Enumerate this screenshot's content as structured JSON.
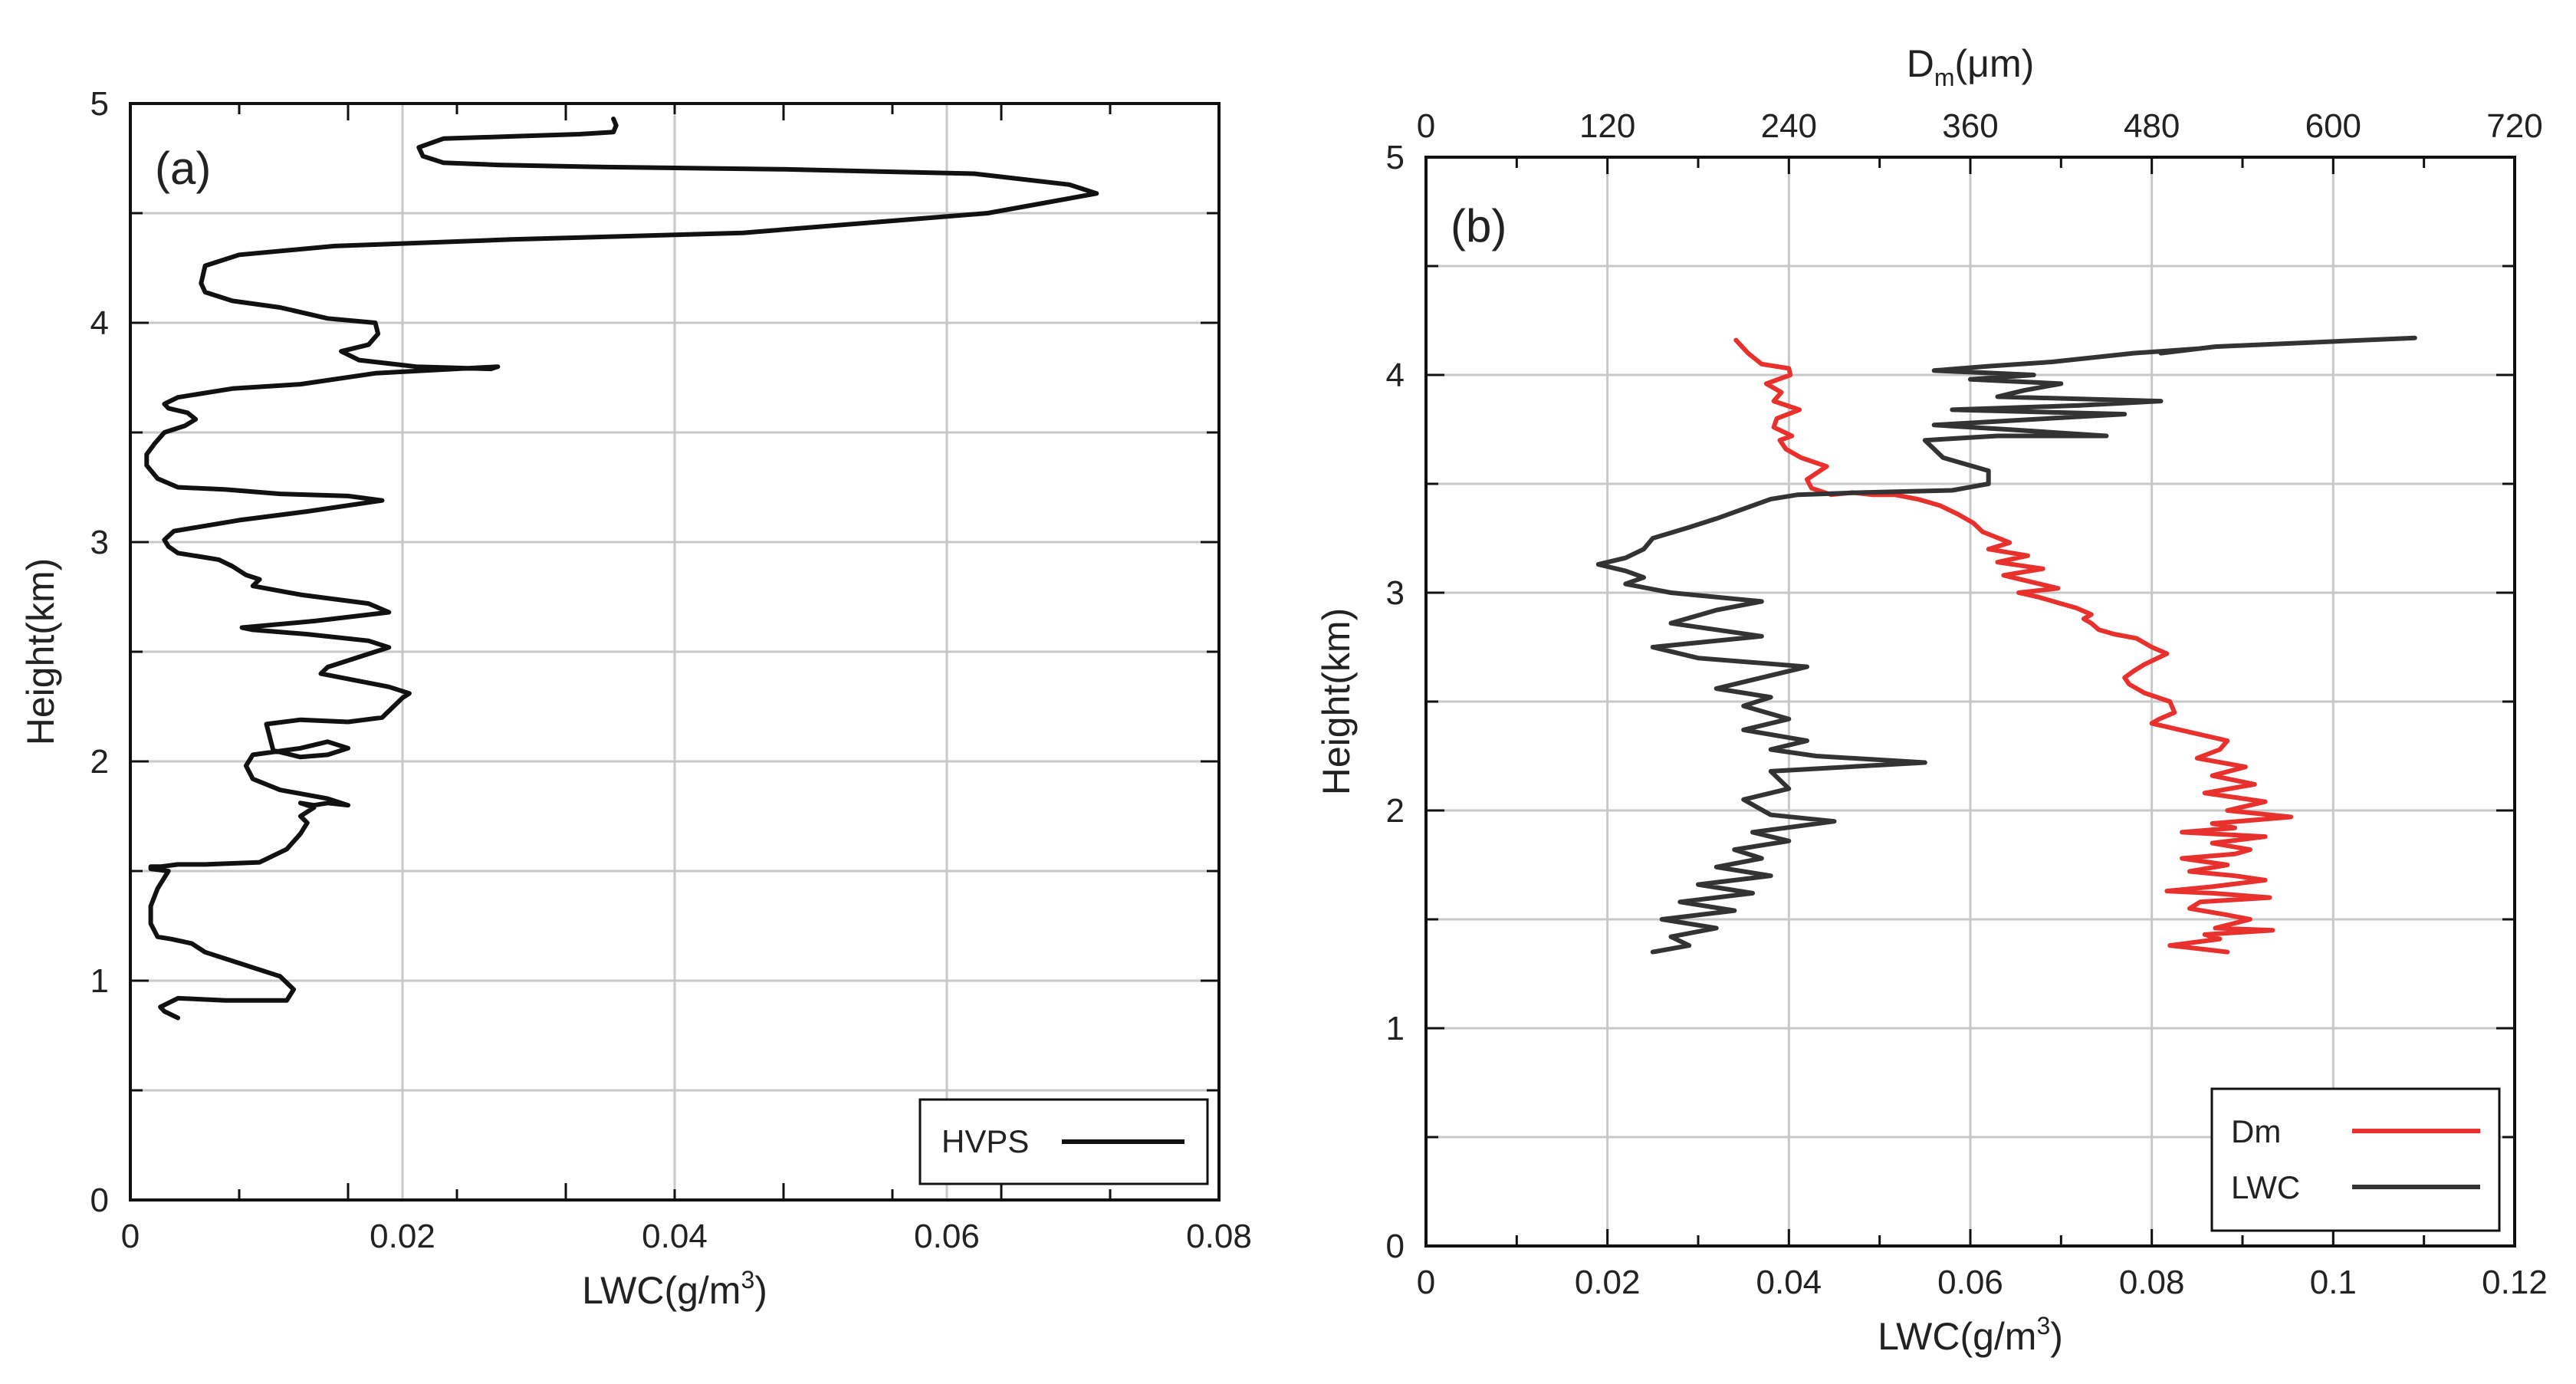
{
  "chart_data": [
    {
      "type": "line",
      "panel_label": "(a)",
      "xlabel": "LWC(g/m",
      "xlabel_sup": "3",
      "xlabel_close": ")",
      "ylabel": "Height(km)",
      "xlim": [
        0,
        0.08
      ],
      "ylim": [
        0,
        5
      ],
      "xticks": [
        0,
        0.02,
        0.04,
        0.06,
        0.08
      ],
      "xtick_labels": [
        "0",
        "0.02",
        "0.04",
        "0.06",
        "0.08"
      ],
      "yticks": [
        0,
        1,
        2,
        3,
        4,
        5
      ],
      "ytick_labels": [
        "0",
        "1",
        "2",
        "3",
        "4",
        "5"
      ],
      "grid": true,
      "legend_position": "bottom-right",
      "series": [
        {
          "name": "HVPS",
          "color": "#111111",
          "x": [
            0.0035,
            0.0025,
            0.0022,
            0.0035,
            0.007,
            0.0115,
            0.012,
            0.011,
            0.008,
            0.0055,
            0.0045,
            0.003,
            0.002,
            0.0015,
            0.0015,
            0.002,
            0.0028,
            0.0015,
            0.0015,
            0.0022,
            0.0035,
            0.0055,
            0.0095,
            0.0115,
            0.0125,
            0.013,
            0.0125,
            0.0135,
            0.0125,
            0.0135,
            0.0145,
            0.016,
            0.0155,
            0.0145,
            0.011,
            0.009,
            0.0085,
            0.009,
            0.0125,
            0.0145,
            0.016,
            0.0145,
            0.0125,
            0.0105,
            0.01,
            0.0125,
            0.016,
            0.0185,
            0.02,
            0.0205,
            0.019,
            0.0165,
            0.014,
            0.0145,
            0.0175,
            0.019,
            0.0175,
            0.013,
            0.009,
            0.0082,
            0.0135,
            0.019,
            0.0175,
            0.0125,
            0.009,
            0.0095,
            0.0085,
            0.0075,
            0.0065,
            0.0055,
            0.0045,
            0.0035,
            0.0028,
            0.0025,
            0.0032,
            0.008,
            0.013,
            0.0185,
            0.016,
            0.011,
            0.007,
            0.0035,
            0.002,
            0.0012,
            0.0012,
            0.0018,
            0.0025,
            0.004,
            0.0048,
            0.0042,
            0.0028,
            0.0025,
            0.0035,
            0.0075,
            0.0125,
            0.018,
            0.027,
            0.0265,
            0.021,
            0.0168,
            0.0155,
            0.0175,
            0.0182,
            0.018,
            0.0145,
            0.011,
            0.0075,
            0.0055,
            0.0052,
            0.0055,
            0.008,
            0.015,
            0.028,
            0.045,
            0.063,
            0.071,
            0.069,
            0.062,
            0.048,
            0.035,
            0.027,
            0.023,
            0.0215,
            0.0212,
            0.023,
            0.028,
            0.033,
            0.0355,
            0.0357,
            0.0355
          ],
          "y": [
            0.83,
            0.86,
            0.88,
            0.92,
            0.91,
            0.91,
            0.96,
            1.02,
            1.08,
            1.13,
            1.17,
            1.19,
            1.2,
            1.26,
            1.34,
            1.42,
            1.5,
            1.51,
            1.52,
            1.52,
            1.53,
            1.53,
            1.54,
            1.6,
            1.67,
            1.72,
            1.75,
            1.79,
            1.81,
            1.8,
            1.81,
            1.8,
            1.81,
            1.83,
            1.87,
            1.92,
            1.98,
            2.03,
            2.06,
            2.09,
            2.06,
            2.03,
            2.02,
            2.05,
            2.17,
            2.19,
            2.18,
            2.2,
            2.29,
            2.31,
            2.34,
            2.37,
            2.4,
            2.43,
            2.49,
            2.52,
            2.55,
            2.58,
            2.6,
            2.61,
            2.64,
            2.68,
            2.72,
            2.76,
            2.8,
            2.83,
            2.85,
            2.89,
            2.92,
            2.93,
            2.94,
            2.95,
            2.98,
            3.01,
            3.05,
            3.1,
            3.14,
            3.19,
            3.21,
            3.22,
            3.24,
            3.25,
            3.29,
            3.35,
            3.4,
            3.45,
            3.5,
            3.53,
            3.56,
            3.59,
            3.61,
            3.63,
            3.66,
            3.7,
            3.72,
            3.77,
            3.8,
            3.79,
            3.8,
            3.83,
            3.87,
            3.9,
            3.95,
            4.0,
            4.02,
            4.07,
            4.1,
            4.14,
            4.18,
            4.26,
            4.31,
            4.35,
            4.38,
            4.41,
            4.5,
            4.59,
            4.63,
            4.68,
            4.7,
            4.71,
            4.72,
            4.73,
            4.76,
            4.8,
            4.84,
            4.85,
            4.86,
            4.87,
            4.9,
            4.93
          ]
        }
      ]
    },
    {
      "type": "line",
      "panel_label": "(b)",
      "xlabel": "LWC(g/m",
      "xlabel_sup": "3",
      "xlabel_close": ")",
      "ylabel": "Height(km)",
      "x2label": "D",
      "x2label_sub": "m",
      "x2label_unit": "(μm)",
      "xlim": [
        0,
        0.12
      ],
      "x2lim": [
        0,
        720
      ],
      "ylim": [
        0,
        5
      ],
      "xticks": [
        0,
        0.02,
        0.04,
        0.06,
        0.08,
        0.1,
        0.12
      ],
      "xtick_labels": [
        "0",
        "0.02",
        "0.04",
        "0.06",
        "0.08",
        "0.1",
        "0.12"
      ],
      "x2ticks": [
        0,
        120,
        240,
        360,
        480,
        600,
        720
      ],
      "x2tick_labels": [
        "0",
        "120",
        "240",
        "360",
        "480",
        "600",
        "720"
      ],
      "yticks": [
        0,
        1,
        2,
        3,
        4,
        5
      ],
      "ytick_labels": [
        "0",
        "1",
        "2",
        "3",
        "4",
        "5"
      ],
      "grid": true,
      "legend_position": "bottom-right",
      "series": [
        {
          "name": "Dm",
          "color": "#e8302c",
          "axis": "top",
          "x": [
            530,
            505,
            492,
            525,
            515,
            560,
            522,
            545,
            530,
            505,
            512,
            558,
            520,
            490,
            520,
            555,
            535,
            505,
            530,
            500,
            535,
            545,
            520,
            555,
            500,
            535,
            520,
            572,
            530,
            555,
            515,
            548,
            520,
            542,
            510,
            525,
            530,
            505,
            480,
            485,
            495,
            492,
            475,
            465,
            462,
            468,
            475,
            490,
            480,
            470,
            455,
            445,
            440,
            435,
            440,
            430,
            420,
            405,
            392,
            418,
            400,
            382,
            408,
            378,
            398,
            372,
            386,
            368,
            362,
            352,
            340,
            325,
            310,
            295,
            282,
            268,
            255,
            252,
            265,
            248,
            238,
            234,
            242,
            230,
            232,
            247,
            230,
            235,
            225,
            241,
            240,
            222,
            213,
            205
          ],
          "y": [
            1.35,
            1.37,
            1.38,
            1.41,
            1.43,
            1.45,
            1.46,
            1.5,
            1.52,
            1.55,
            1.58,
            1.6,
            1.62,
            1.63,
            1.65,
            1.68,
            1.7,
            1.72,
            1.75,
            1.78,
            1.8,
            1.82,
            1.85,
            1.88,
            1.9,
            1.92,
            1.94,
            1.97,
            2.0,
            2.04,
            2.08,
            2.12,
            2.16,
            2.2,
            2.24,
            2.28,
            2.32,
            2.36,
            2.4,
            2.42,
            2.45,
            2.5,
            2.54,
            2.58,
            2.61,
            2.64,
            2.67,
            2.72,
            2.75,
            2.79,
            2.81,
            2.83,
            2.86,
            2.88,
            2.9,
            2.93,
            2.95,
            2.98,
            3.0,
            3.02,
            3.05,
            3.08,
            3.11,
            3.14,
            3.17,
            3.2,
            3.23,
            3.28,
            3.32,
            3.36,
            3.4,
            3.43,
            3.45,
            3.45,
            3.46,
            3.45,
            3.48,
            3.52,
            3.58,
            3.62,
            3.66,
            3.7,
            3.72,
            3.76,
            3.8,
            3.84,
            3.88,
            3.92,
            3.96,
            4.0,
            4.03,
            4.05,
            4.1,
            4.16
          ]
        },
        {
          "name": "LWC",
          "color": "#333333",
          "axis": "bottom",
          "x": [
            0.025,
            0.029,
            0.027,
            0.032,
            0.026,
            0.034,
            0.028,
            0.036,
            0.03,
            0.038,
            0.032,
            0.037,
            0.034,
            0.04,
            0.036,
            0.045,
            0.038,
            0.035,
            0.04,
            0.038,
            0.055,
            0.043,
            0.038,
            0.042,
            0.035,
            0.04,
            0.035,
            0.038,
            0.032,
            0.038,
            0.042,
            0.03,
            0.025,
            0.037,
            0.027,
            0.032,
            0.037,
            0.027,
            0.022,
            0.024,
            0.022,
            0.019,
            0.022,
            0.024,
            0.025,
            0.029,
            0.032,
            0.034,
            0.036,
            0.038,
            0.041,
            0.048,
            0.058,
            0.062,
            0.062,
            0.057,
            0.055,
            0.063,
            0.068,
            0.075,
            0.064,
            0.056,
            0.077,
            0.058,
            0.072,
            0.081,
            0.063,
            0.066,
            0.07,
            0.06,
            0.067,
            0.056,
            0.062,
            0.069,
            0.078,
            0.085,
            0.081,
            0.087,
            0.109
          ],
          "y": [
            1.35,
            1.38,
            1.42,
            1.46,
            1.5,
            1.54,
            1.58,
            1.62,
            1.66,
            1.7,
            1.74,
            1.78,
            1.82,
            1.86,
            1.9,
            1.95,
            1.98,
            2.05,
            2.1,
            2.18,
            2.22,
            2.25,
            2.28,
            2.32,
            2.37,
            2.42,
            2.48,
            2.52,
            2.56,
            2.62,
            2.66,
            2.7,
            2.75,
            2.8,
            2.86,
            2.92,
            2.96,
            3.0,
            3.04,
            3.07,
            3.1,
            3.13,
            3.16,
            3.2,
            3.25,
            3.3,
            3.34,
            3.37,
            3.4,
            3.43,
            3.45,
            3.46,
            3.47,
            3.5,
            3.56,
            3.62,
            3.7,
            3.72,
            3.72,
            3.72,
            3.75,
            3.77,
            3.82,
            3.84,
            3.86,
            3.88,
            3.9,
            3.93,
            3.96,
            3.98,
            4.0,
            4.02,
            4.04,
            4.06,
            4.1,
            4.12,
            4.1,
            4.13,
            4.17
          ]
        }
      ]
    }
  ]
}
